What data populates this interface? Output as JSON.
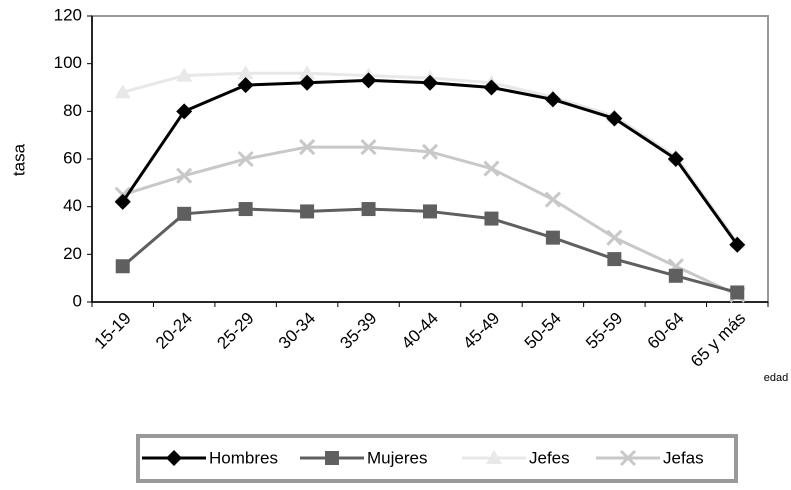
{
  "chart_data": {
    "type": "line",
    "y_label": "tasa",
    "x_label": "edad",
    "categories": [
      "15-19",
      "20-24",
      "25-29",
      "30-34",
      "35-39",
      "40-44",
      "45-49",
      "50-54",
      "55-59",
      "60-64",
      "65 y más"
    ],
    "series": [
      {
        "name": "Hombres",
        "color": "#000000",
        "marker": "diamond",
        "values": [
          42,
          80,
          91,
          92,
          93,
          92,
          90,
          85,
          77,
          60,
          24
        ]
      },
      {
        "name": "Mujeres",
        "color": "#5f5f5f",
        "marker": "square",
        "values": [
          15,
          37,
          39,
          38,
          39,
          38,
          35,
          27,
          18,
          11,
          4
        ]
      },
      {
        "name": "Jefes",
        "color": "#e8e8e8",
        "marker": "triangle",
        "values": [
          88,
          95,
          96,
          96,
          95,
          94,
          92,
          86,
          78,
          61,
          25
        ]
      },
      {
        "name": "Jefas",
        "color": "#c8c8c8",
        "marker": "x",
        "values": [
          45,
          53,
          60,
          65,
          65,
          63,
          56,
          43,
          27,
          15,
          3
        ]
      }
    ],
    "ylim": [
      0,
      120
    ],
    "yticks": [
      0,
      20,
      40,
      60,
      80,
      100,
      120
    ],
    "legend": "bottom"
  }
}
